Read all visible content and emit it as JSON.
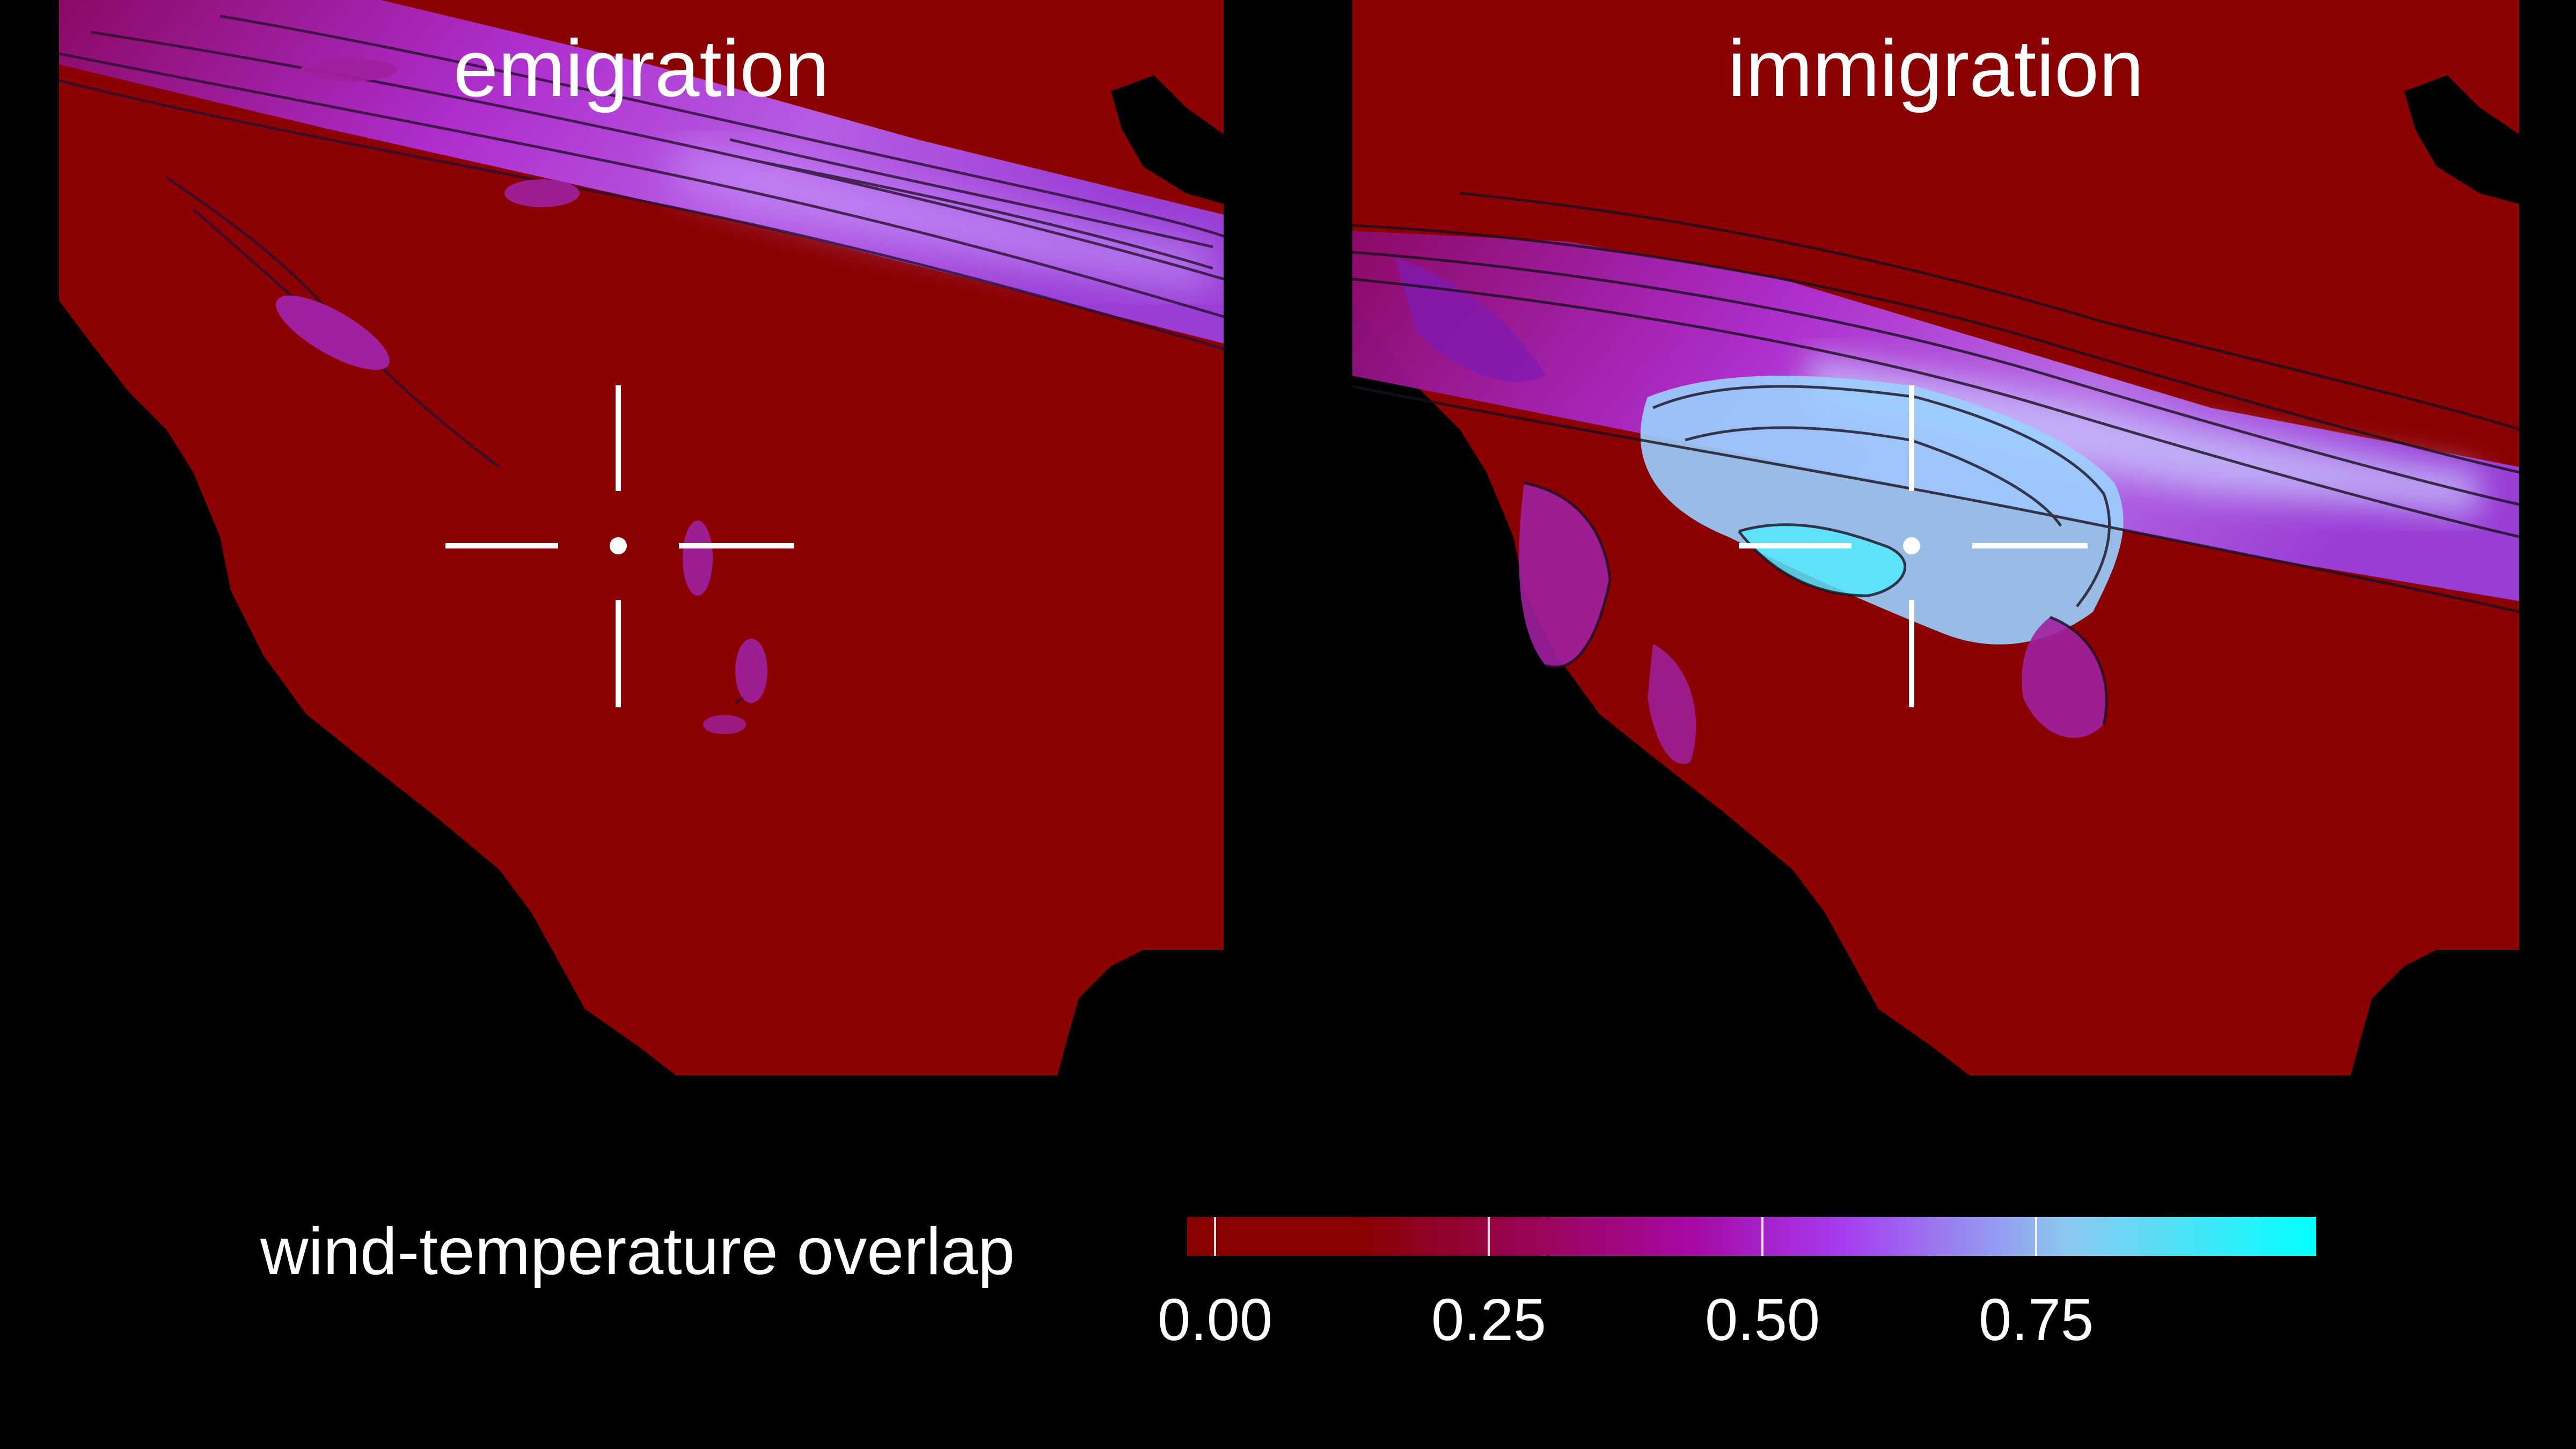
{
  "panels": {
    "left": {
      "title": "emigration"
    },
    "right": {
      "title": "immigration"
    }
  },
  "legend": {
    "title": "wind-temperature overlap",
    "ticks": [
      "0.00",
      "0.25",
      "0.50",
      "0.75"
    ],
    "tick_values": [
      0.0,
      0.25,
      0.5,
      0.75
    ],
    "range": [
      0.0,
      1.0
    ]
  },
  "colors": {
    "background": "#000000",
    "low": "#8b0000",
    "mid_low": "#a60aa6",
    "mid": "#a63cf0",
    "high": "#8cc8f0",
    "max": "#00ffff",
    "marker": "#ffffff",
    "contour": "#222222"
  },
  "icons": {
    "location_marker": "crosshair-icon"
  }
}
